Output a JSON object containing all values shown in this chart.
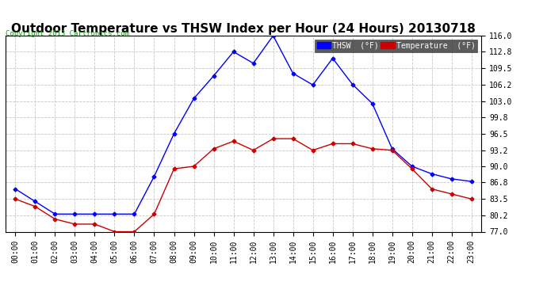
{
  "title": "Outdoor Temperature vs THSW Index per Hour (24 Hours) 20130718",
  "copyright": "Copyright 2013 Cartronics.com",
  "hours": [
    "00:00",
    "01:00",
    "02:00",
    "03:00",
    "04:00",
    "05:00",
    "06:00",
    "07:00",
    "08:00",
    "09:00",
    "10:00",
    "11:00",
    "12:00",
    "13:00",
    "14:00",
    "15:00",
    "16:00",
    "17:00",
    "18:00",
    "19:00",
    "20:00",
    "21:00",
    "22:00",
    "23:00"
  ],
  "thsw": [
    85.5,
    83.0,
    80.5,
    80.5,
    80.5,
    80.5,
    80.5,
    88.0,
    96.5,
    103.5,
    108.0,
    112.8,
    110.5,
    116.0,
    108.5,
    106.2,
    111.5,
    106.3,
    102.5,
    93.5,
    90.0,
    88.5,
    87.5,
    87.0
  ],
  "temp": [
    83.5,
    82.0,
    79.5,
    78.5,
    78.5,
    77.0,
    77.0,
    80.5,
    89.5,
    90.0,
    93.5,
    95.0,
    93.2,
    95.5,
    95.5,
    93.2,
    94.5,
    94.5,
    93.5,
    93.2,
    89.5,
    85.5,
    84.5,
    83.5
  ],
  "thsw_color": "#0000ff",
  "temp_color": "#cc0000",
  "bg_color": "#ffffff",
  "plot_bg_color": "#ffffff",
  "grid_color": "#c8c8c8",
  "ymin": 77.0,
  "ymax": 116.0,
  "yticks": [
    77.0,
    80.2,
    83.5,
    86.8,
    90.0,
    93.2,
    96.5,
    99.8,
    103.0,
    106.2,
    109.5,
    112.8,
    116.0
  ],
  "title_fontsize": 11,
  "copyright_fontsize": 6.5,
  "tick_fontsize": 7,
  "legend_thsw_label": "THSW  (°F)",
  "legend_temp_label": "Temperature  (°F)"
}
